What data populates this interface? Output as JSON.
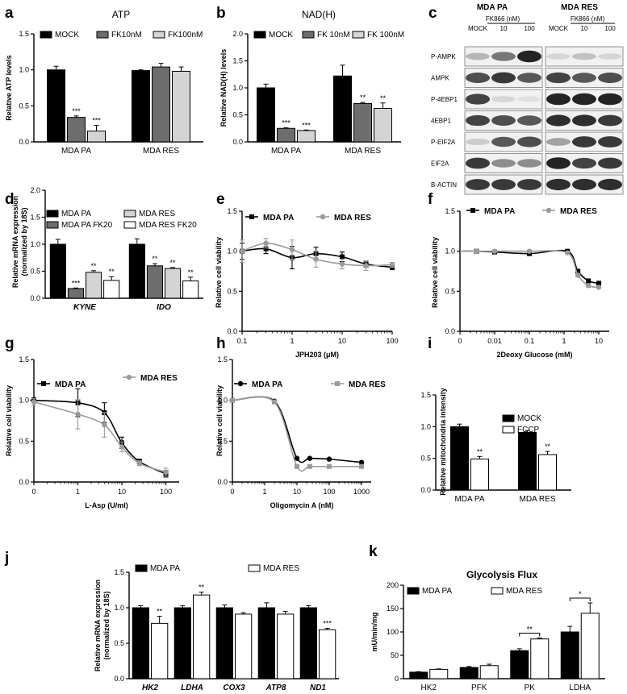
{
  "panel_labels": [
    "a",
    "b",
    "c",
    "d",
    "e",
    "f",
    "g",
    "h",
    "i",
    "j",
    "k"
  ],
  "colors": {
    "black": "#000000",
    "dark_gray": "#6d6d6d",
    "light_gray": "#d4d4d4",
    "white": "#ffffff",
    "gray_line": "#9a9a9a"
  },
  "chart_data": [
    {
      "panel": "a",
      "type": "bar",
      "title": "ATP",
      "ylabel": "Relative ATP levels",
      "ylim": [
        0,
        1.5
      ],
      "yticks": [
        "0.0",
        "0.5",
        "1.0",
        "1.5"
      ],
      "categories": [
        "MDA PA",
        "MDA RES"
      ],
      "series": [
        {
          "name": "MOCK",
          "fill": "#000000",
          "values": [
            1.0,
            0.99
          ],
          "errors": [
            0.05,
            0.01
          ],
          "sig": [
            "",
            ""
          ]
        },
        {
          "name": "FK10nM",
          "fill": "#6d6d6d",
          "values": [
            0.34,
            1.04
          ],
          "errors": [
            0.02,
            0.05
          ],
          "sig": [
            "***",
            ""
          ]
        },
        {
          "name": "FK100nM",
          "fill": "#d4d4d4",
          "values": [
            0.15,
            0.98
          ],
          "errors": [
            0.08,
            0.06
          ],
          "sig": [
            "***",
            ""
          ]
        }
      ]
    },
    {
      "panel": "b",
      "type": "bar",
      "title": "NAD(H)",
      "ylabel": "Relative NAD(H) levels",
      "ylim": [
        0,
        2.0
      ],
      "yticks": [
        "0.0",
        "0.5",
        "1.0",
        "1.5",
        "2.0"
      ],
      "categories": [
        "MDA PA",
        "MDA RES"
      ],
      "series": [
        {
          "name": "MOCK",
          "fill": "#000000",
          "values": [
            1.0,
            1.22
          ],
          "errors": [
            0.07,
            0.2
          ],
          "sig": [
            "",
            ""
          ]
        },
        {
          "name": "FK 10nM",
          "fill": "#6d6d6d",
          "values": [
            0.25,
            0.71
          ],
          "errors": [
            0.01,
            0.02
          ],
          "sig": [
            "***",
            "**"
          ]
        },
        {
          "name": "FK 100nM",
          "fill": "#d4d4d4",
          "values": [
            0.21,
            0.62
          ],
          "errors": [
            0.01,
            0.1
          ],
          "sig": [
            "***",
            "**"
          ]
        }
      ]
    },
    {
      "panel": "d",
      "type": "bar",
      "title": "",
      "ylabel": "Relative mRNA expression (normalized by 18S)",
      "ylim": [
        0,
        2.0
      ],
      "yticks": [
        "0.0",
        "0.5",
        "1.0",
        "1.5",
        "2.0"
      ],
      "categories": [
        "KYNE",
        "IDO"
      ],
      "series": [
        {
          "name": "MDA PA",
          "fill": "#000000",
          "values": [
            1.0,
            1.0
          ],
          "errors": [
            0.09,
            0.1
          ],
          "sig": [
            "",
            ""
          ]
        },
        {
          "name": "MDA PA FK20",
          "fill": "#6d6d6d",
          "values": [
            0.18,
            0.6
          ],
          "errors": [
            0.01,
            0.04
          ],
          "sig": [
            "***",
            "**"
          ]
        },
        {
          "name": "MDA RES",
          "fill": "#d4d4d4",
          "values": [
            0.48,
            0.55
          ],
          "errors": [
            0.03,
            0.02
          ],
          "sig": [
            "**",
            "**"
          ]
        },
        {
          "name": "MDA RES FK20",
          "fill": "#ffffff",
          "values": [
            0.33,
            0.32
          ],
          "errors": [
            0.07,
            0.07
          ],
          "sig": [
            "**",
            "**"
          ]
        }
      ]
    },
    {
      "panel": "e",
      "type": "line",
      "xscale": "log",
      "xlabel": "JPH203 (μM)",
      "ylabel": "Relative cell viability",
      "ylim": [
        0,
        1.5
      ],
      "yticks": [
        "0.0",
        "0.5",
        "1.0",
        "1.5"
      ],
      "xticks": [
        "0.1",
        "1",
        "10",
        "100"
      ],
      "series": [
        {
          "name": "MDA PA",
          "color": "#000000",
          "marker": "square",
          "x": [
            0.1,
            0.3,
            1,
            3,
            10,
            30,
            100
          ],
          "y": [
            1.0,
            1.03,
            0.92,
            0.97,
            0.93,
            0.84,
            0.8
          ],
          "err": [
            0.1,
            0.06,
            0.14,
            0.08,
            0.06,
            0.04,
            0.03
          ]
        },
        {
          "name": "MDA RES",
          "color": "#9a9a9a",
          "marker": "circle",
          "x": [
            0.1,
            0.3,
            1,
            3,
            10,
            30,
            100
          ],
          "y": [
            1.0,
            1.1,
            1.02,
            0.9,
            0.84,
            0.82,
            0.83
          ],
          "err": [
            0.14,
            0.06,
            0.12,
            0.1,
            0.06,
            0.06,
            0.03
          ]
        }
      ]
    },
    {
      "panel": "f",
      "type": "line",
      "xscale": "log",
      "xlabel": "2Deoxy Glucose (mM)",
      "ylabel": "Relative cell viability",
      "ylim": [
        0,
        1.5
      ],
      "yticks": [
        "0.0",
        "0.5",
        "1.0",
        "1.5"
      ],
      "xticks": [
        "0",
        "0.01",
        "0.1",
        "1",
        "10"
      ],
      "series": [
        {
          "name": "MDA PA",
          "color": "#000000",
          "marker": "square",
          "x": [
            0.003,
            0.01,
            0.1,
            1.25,
            2.5,
            5,
            10
          ],
          "y": [
            1.0,
            0.99,
            0.97,
            1.0,
            0.75,
            0.63,
            0.6
          ],
          "err": [
            0.01,
            0.01,
            0.01,
            0.01,
            0.02,
            0.02,
            0.01
          ]
        },
        {
          "name": "MDA RES",
          "color": "#9a9a9a",
          "marker": "circle",
          "x": [
            0.003,
            0.01,
            0.1,
            1.25,
            2.5,
            5,
            10
          ],
          "y": [
            1.0,
            1.0,
            1.0,
            0.98,
            0.7,
            0.57,
            0.55
          ],
          "err": [
            0.01,
            0.01,
            0.01,
            0.01,
            0.02,
            0.02,
            0.01
          ]
        }
      ]
    },
    {
      "panel": "g",
      "type": "line",
      "xscale": "log",
      "xlabel": "L-Asp (U/ml)",
      "ylabel": "Relative cell viability",
      "ylim": [
        0,
        1.5
      ],
      "yticks": [
        "0.0",
        "0.5",
        "1.0",
        "1.5"
      ],
      "xticks": [
        "0",
        "1",
        "10",
        "100"
      ],
      "series": [
        {
          "name": "MDA PA",
          "color": "#000000",
          "marker": "square",
          "x": [
            0.1,
            1,
            4,
            10,
            25,
            100
          ],
          "y": [
            1.0,
            0.97,
            0.85,
            0.48,
            0.25,
            0.1
          ],
          "err": [
            0.03,
            0.17,
            0.12,
            0.07,
            0.03,
            0.04
          ]
        },
        {
          "name": "MDA RES",
          "color": "#9a9a9a",
          "marker": "circle",
          "x": [
            0.1,
            1,
            4,
            10,
            25,
            100
          ],
          "y": [
            0.98,
            0.83,
            0.7,
            0.43,
            0.23,
            0.12
          ],
          "err": [
            0.04,
            0.18,
            0.15,
            0.06,
            0.03,
            0.05
          ]
        }
      ]
    },
    {
      "panel": "h",
      "type": "line",
      "xscale": "log",
      "xlabel": "Oligomycin A (nM)",
      "ylabel": "Relative cell viability",
      "ylim": [
        0,
        1.5
      ],
      "yticks": [
        "0.0",
        "0.5",
        "1.0",
        "1.5"
      ],
      "xticks": [
        "0",
        "1",
        "10",
        "100",
        "1000"
      ],
      "series": [
        {
          "name": "MDA PA",
          "color": "#000000",
          "marker": "circle",
          "x": [
            0.1,
            2,
            10,
            25,
            100,
            1000
          ],
          "y": [
            1.0,
            0.99,
            0.29,
            0.29,
            0.28,
            0.24
          ],
          "err": [
            0.01,
            0.01,
            0.01,
            0.01,
            0.01,
            0.01
          ]
        },
        {
          "name": "MDA RES",
          "color": "#9a9a9a",
          "marker": "square",
          "x": [
            0.1,
            2,
            10,
            25,
            100,
            1000
          ],
          "y": [
            1.0,
            0.98,
            0.19,
            0.19,
            0.19,
            0.19
          ],
          "err": [
            0.01,
            0.01,
            0.01,
            0.01,
            0.01,
            0.01
          ]
        }
      ]
    },
    {
      "panel": "i",
      "type": "bar",
      "title": "",
      "ylabel": "Relative mitochondria intensity",
      "ylim": [
        0,
        1.5
      ],
      "yticks": [
        "0.0",
        "0.5",
        "1.0",
        "1.5"
      ],
      "categories": [
        "MDA PA",
        "MDA RES"
      ],
      "series": [
        {
          "name": "MOCK",
          "fill": "#000000",
          "values": [
            1.0,
            0.91
          ],
          "errors": [
            0.04,
            0.03
          ],
          "sig": [
            "",
            ""
          ]
        },
        {
          "name": "FCCP",
          "fill": "#ffffff",
          "values": [
            0.49,
            0.56
          ],
          "errors": [
            0.04,
            0.05
          ],
          "sig": [
            "**",
            "**"
          ]
        }
      ]
    },
    {
      "panel": "j",
      "type": "bar",
      "title": "",
      "ylabel": "Relative mRNA expression (normalized by 18S)",
      "ylim": [
        0,
        1.5
      ],
      "yticks": [
        "0.0",
        "0.5",
        "1.0",
        "1.5"
      ],
      "categories": [
        "HK2",
        "LDHA",
        "COX3",
        "ATP8",
        "ND1"
      ],
      "series": [
        {
          "name": "MDA PA",
          "fill": "#000000",
          "values": [
            1.0,
            1.0,
            1.0,
            1.0,
            1.0
          ],
          "errors": [
            0.03,
            0.03,
            0.04,
            0.07,
            0.03
          ],
          "sig": [
            "",
            "",
            "",
            "",
            ""
          ]
        },
        {
          "name": "MDA RES",
          "fill": "#ffffff",
          "values": [
            0.78,
            1.18,
            0.91,
            0.91,
            0.69
          ],
          "errors": [
            0.1,
            0.04,
            0.02,
            0.04,
            0.02
          ],
          "sig": [
            "**",
            "**",
            "",
            "",
            "***"
          ]
        }
      ]
    },
    {
      "panel": "k",
      "type": "bar",
      "title": "Glycolysis Flux",
      "ylabel": "mU/min/mg",
      "ylim": [
        0,
        200
      ],
      "yticks": [
        "0",
        "50",
        "100",
        "150",
        "200"
      ],
      "categories": [
        "HK2",
        "PFK",
        "PK",
        "LDHA"
      ],
      "series": [
        {
          "name": "MDA PA",
          "fill": "#000000",
          "values": [
            14,
            24,
            60,
            100
          ],
          "errors": [
            1,
            2,
            4,
            12
          ],
          "sig": [
            "",
            "",
            "",
            ""
          ]
        },
        {
          "name": "MDA RES",
          "fill": "#ffffff",
          "values": [
            20,
            28,
            85,
            140
          ],
          "errors": [
            1,
            3,
            2,
            22
          ],
          "sig": [
            "",
            "",
            "",
            ""
          ]
        }
      ],
      "brackets": [
        {
          "category": "PK",
          "label": "**"
        },
        {
          "category": "LDHA",
          "label": "*"
        }
      ]
    }
  ],
  "western_blot": {
    "panel": "c",
    "group_labels": [
      "MDA PA",
      "MDA RES"
    ],
    "treatment_label": "FK866 (nM)",
    "lane_labels": [
      "MOCK",
      "10",
      "100",
      "MOCK",
      "10",
      "100"
    ],
    "rows": [
      "P-AMPK",
      "AMPK",
      "P-4EBP1",
      "4EBP1",
      "P-EIF2A",
      "EIF2A",
      "B-ACTIN"
    ],
    "intensity": [
      [
        0.25,
        0.55,
        0.95,
        0.1,
        0.2,
        0.1
      ],
      [
        0.75,
        0.85,
        0.7,
        0.8,
        0.7,
        0.75
      ],
      [
        0.8,
        0.1,
        0.05,
        0.95,
        0.95,
        0.95
      ],
      [
        0.8,
        0.75,
        0.7,
        0.9,
        0.9,
        0.85
      ],
      [
        0.15,
        0.7,
        0.75,
        0.35,
        0.85,
        0.85
      ],
      [
        0.85,
        0.45,
        0.45,
        0.95,
        0.8,
        0.85
      ],
      [
        0.85,
        0.85,
        0.85,
        0.9,
        0.9,
        0.9
      ]
    ]
  }
}
